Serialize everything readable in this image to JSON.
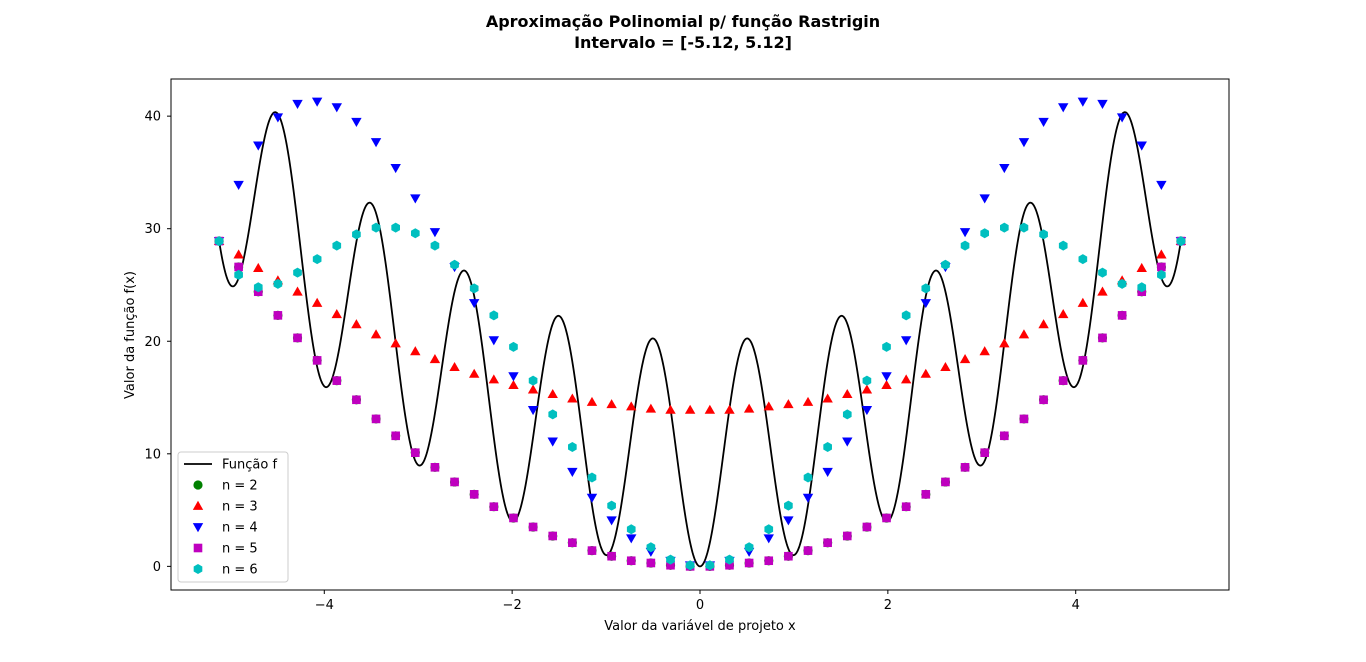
{
  "chart_data": {
    "type": "scatter",
    "title_line1": "Aproximação Polinomial p/ função Rastrigin",
    "title_line2": "Intervalo = [-5.12, 5.12]",
    "xlabel": "Valor da variável de projeto x",
    "ylabel": "Valor da função f(x)",
    "xlim": [
      -5.632,
      5.632
    ],
    "ylim": [
      -2.1,
      43.3
    ],
    "xticks": [
      -4,
      -2,
      0,
      2,
      4
    ],
    "xtick_labels": [
      "−4",
      "−2",
      "0",
      "2",
      "4"
    ],
    "yticks": [
      0,
      10,
      20,
      30,
      40
    ],
    "ytick_labels": [
      "0",
      "10",
      "20",
      "30",
      "40"
    ],
    "grid": false,
    "legend_position": "lower-left",
    "line": {
      "name": "Função f",
      "color": "#000000",
      "function": "10 + x^2 - 10*cos(2*pi*x)",
      "x_range": [
        -5.12,
        5.12
      ]
    },
    "series": [
      {
        "name": "n = 2",
        "marker": "circle",
        "color": "#008000",
        "x": [
          -5.12,
          -4.912,
          -4.703,
          -4.494,
          -4.285,
          -4.076,
          -3.867,
          -3.658,
          -3.449,
          -3.24,
          -3.031,
          -2.822,
          -2.613,
          -2.404,
          -2.195,
          -1.986,
          -1.777,
          -1.568,
          -1.359,
          -1.15,
          -0.941,
          -0.732,
          -0.523,
          -0.314,
          -0.105,
          0.105,
          0.314,
          0.523,
          0.732,
          0.941,
          1.15,
          1.359,
          1.568,
          1.777,
          1.986,
          2.195,
          2.404,
          2.613,
          2.822,
          3.031,
          3.24,
          3.449,
          3.658,
          3.867,
          4.076,
          4.285,
          4.494,
          4.703,
          4.912,
          5.12
        ],
        "y": [
          28.9,
          26.6,
          24.4,
          22.3,
          20.3,
          18.3,
          16.5,
          14.8,
          13.1,
          11.6,
          10.1,
          8.8,
          7.5,
          6.4,
          5.3,
          4.3,
          3.5,
          2.7,
          2.1,
          1.4,
          0.9,
          0.5,
          0.3,
          0.1,
          0.0,
          0.0,
          0.1,
          0.3,
          0.5,
          0.9,
          1.4,
          2.1,
          2.7,
          3.5,
          4.3,
          5.3,
          6.4,
          7.5,
          8.8,
          10.1,
          11.6,
          13.1,
          14.8,
          16.5,
          18.3,
          20.3,
          22.3,
          24.4,
          26.6,
          28.9
        ]
      },
      {
        "name": "n = 3",
        "marker": "triangle-up",
        "color": "#ff0000",
        "x": [
          -5.12,
          -4.912,
          -4.703,
          -4.494,
          -4.285,
          -4.076,
          -3.867,
          -3.658,
          -3.449,
          -3.24,
          -3.031,
          -2.822,
          -2.613,
          -2.404,
          -2.195,
          -1.986,
          -1.777,
          -1.568,
          -1.359,
          -1.15,
          -0.941,
          -0.732,
          -0.523,
          -0.314,
          -0.105,
          0.105,
          0.314,
          0.523,
          0.732,
          0.941,
          1.15,
          1.359,
          1.568,
          1.777,
          1.986,
          2.195,
          2.404,
          2.613,
          2.822,
          3.031,
          3.24,
          3.449,
          3.658,
          3.867,
          4.076,
          4.285,
          4.494,
          4.703,
          4.912,
          5.12
        ],
        "y": [
          28.9,
          27.7,
          26.5,
          25.4,
          24.4,
          23.4,
          22.4,
          21.5,
          20.6,
          19.8,
          19.1,
          18.4,
          17.7,
          17.1,
          16.6,
          16.1,
          15.7,
          15.3,
          14.9,
          14.6,
          14.4,
          14.2,
          14.0,
          13.9,
          13.9,
          13.9,
          13.9,
          14.0,
          14.2,
          14.4,
          14.6,
          14.9,
          15.3,
          15.7,
          16.1,
          16.6,
          17.1,
          17.7,
          18.4,
          19.1,
          19.8,
          20.6,
          21.5,
          22.4,
          23.4,
          24.4,
          25.4,
          26.5,
          27.7,
          28.9
        ]
      },
      {
        "name": "n = 4",
        "marker": "triangle-down",
        "color": "#0000ff",
        "x": [
          -5.12,
          -4.912,
          -4.703,
          -4.494,
          -4.285,
          -4.076,
          -3.867,
          -3.658,
          -3.449,
          -3.24,
          -3.031,
          -2.822,
          -2.613,
          -2.404,
          -2.195,
          -1.986,
          -1.777,
          -1.568,
          -1.359,
          -1.15,
          -0.941,
          -0.732,
          -0.523,
          -0.314,
          -0.105,
          0.105,
          0.314,
          0.523,
          0.732,
          0.941,
          1.15,
          1.359,
          1.568,
          1.777,
          1.986,
          2.195,
          2.404,
          2.613,
          2.822,
          3.031,
          3.24,
          3.449,
          3.658,
          3.867,
          4.076,
          4.285,
          4.494,
          4.703,
          4.912,
          5.12
        ],
        "y": [
          28.9,
          33.9,
          37.4,
          39.9,
          41.1,
          41.3,
          40.8,
          39.5,
          37.7,
          35.4,
          32.7,
          29.7,
          26.6,
          23.4,
          20.1,
          16.9,
          13.9,
          11.1,
          8.4,
          6.1,
          4.1,
          2.5,
          1.3,
          0.5,
          0.1,
          0.1,
          0.5,
          1.3,
          2.5,
          4.1,
          6.1,
          8.4,
          11.1,
          13.9,
          16.9,
          20.1,
          23.4,
          26.6,
          29.7,
          32.7,
          35.4,
          37.7,
          39.5,
          40.8,
          41.3,
          41.1,
          39.9,
          37.4,
          33.9,
          28.9
        ]
      },
      {
        "name": "n = 5",
        "marker": "square",
        "color": "#bf00bf",
        "x": [
          -5.12,
          -4.912,
          -4.703,
          -4.494,
          -4.285,
          -4.076,
          -3.867,
          -3.658,
          -3.449,
          -3.24,
          -3.031,
          -2.822,
          -2.613,
          -2.404,
          -2.195,
          -1.986,
          -1.777,
          -1.568,
          -1.359,
          -1.15,
          -0.941,
          -0.732,
          -0.523,
          -0.314,
          -0.105,
          0.105,
          0.314,
          0.523,
          0.732,
          0.941,
          1.15,
          1.359,
          1.568,
          1.777,
          1.986,
          2.195,
          2.404,
          2.613,
          2.822,
          3.031,
          3.24,
          3.449,
          3.658,
          3.867,
          4.076,
          4.285,
          4.494,
          4.703,
          4.912,
          5.12
        ],
        "y": [
          28.9,
          26.6,
          24.4,
          22.3,
          20.3,
          18.3,
          16.5,
          14.8,
          13.1,
          11.6,
          10.1,
          8.8,
          7.5,
          6.4,
          5.3,
          4.3,
          3.5,
          2.7,
          2.1,
          1.4,
          0.9,
          0.5,
          0.3,
          0.1,
          0.0,
          0.0,
          0.1,
          0.3,
          0.5,
          0.9,
          1.4,
          2.1,
          2.7,
          3.5,
          4.3,
          5.3,
          6.4,
          7.5,
          8.8,
          10.1,
          11.6,
          13.1,
          14.8,
          16.5,
          18.3,
          20.3,
          22.3,
          24.4,
          26.6,
          28.9
        ]
      },
      {
        "name": "n = 6",
        "marker": "hexagon",
        "color": "#00bfbf",
        "x": [
          -5.12,
          -4.912,
          -4.703,
          -4.494,
          -4.285,
          -4.076,
          -3.867,
          -3.658,
          -3.449,
          -3.24,
          -3.031,
          -2.822,
          -2.613,
          -2.404,
          -2.195,
          -1.986,
          -1.777,
          -1.568,
          -1.359,
          -1.15,
          -0.941,
          -0.732,
          -0.523,
          -0.314,
          -0.105,
          0.105,
          0.314,
          0.523,
          0.732,
          0.941,
          1.15,
          1.359,
          1.568,
          1.777,
          1.986,
          2.195,
          2.404,
          2.613,
          2.822,
          3.031,
          3.24,
          3.449,
          3.658,
          3.867,
          4.076,
          4.285,
          4.494,
          4.703,
          4.912,
          5.12
        ],
        "y": [
          28.9,
          25.9,
          24.8,
          25.1,
          26.1,
          27.3,
          28.5,
          29.5,
          30.1,
          30.1,
          29.6,
          28.5,
          26.8,
          24.7,
          22.3,
          19.5,
          16.5,
          13.5,
          10.6,
          7.9,
          5.4,
          3.3,
          1.7,
          0.6,
          0.1,
          0.1,
          0.6,
          1.7,
          3.3,
          5.4,
          7.9,
          10.6,
          13.5,
          16.5,
          19.5,
          22.3,
          24.7,
          26.8,
          28.5,
          29.6,
          30.1,
          30.1,
          29.5,
          28.5,
          27.3,
          26.1,
          25.1,
          24.8,
          25.9,
          28.9
        ]
      }
    ]
  }
}
